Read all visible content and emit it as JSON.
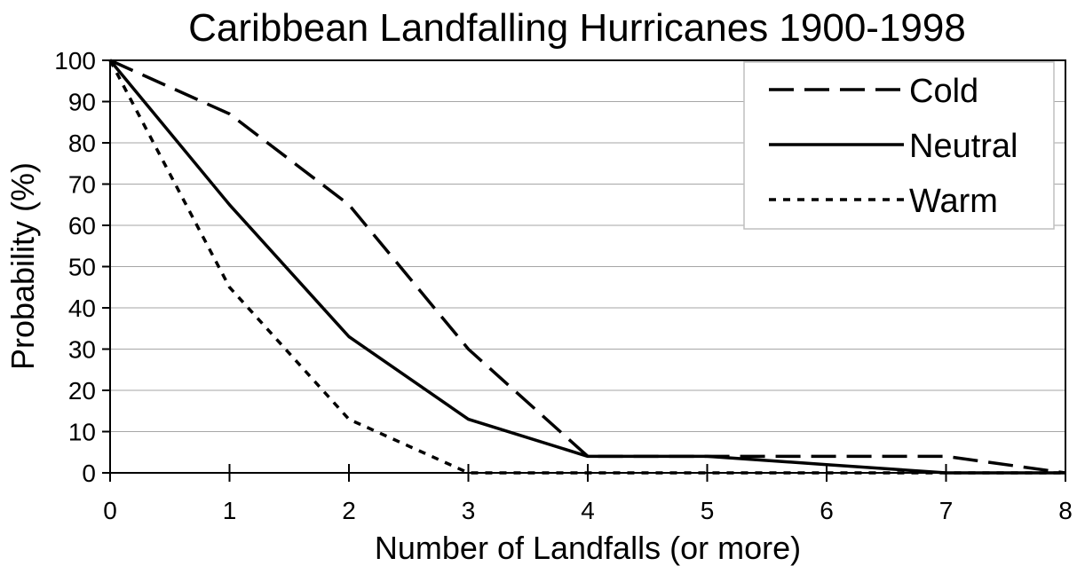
{
  "chart_data": {
    "type": "line",
    "title": "Caribbean Landfalling Hurricanes 1900-1998",
    "xlabel": "Number of Landfalls (or more)",
    "ylabel": "Probability (%)",
    "x": [
      0,
      1,
      2,
      3,
      4,
      5,
      6,
      7,
      8
    ],
    "xlim": [
      0,
      8
    ],
    "ylim": [
      0,
      100
    ],
    "x_ticks": [
      "0",
      "1",
      "2",
      "3",
      "4",
      "5",
      "6",
      "7",
      "8"
    ],
    "y_ticks": [
      "0",
      "10",
      "20",
      "30",
      "40",
      "50",
      "60",
      "70",
      "80",
      "90",
      "100"
    ],
    "grid": "horizontal",
    "legend_position": "top-right",
    "series": [
      {
        "name": "Cold",
        "style": "dashed",
        "color": "#000000",
        "values": [
          100,
          87,
          65,
          30,
          4,
          4,
          4,
          4,
          0
        ]
      },
      {
        "name": "Neutral",
        "style": "solid",
        "color": "#000000",
        "values": [
          100,
          65,
          33,
          13,
          4,
          4,
          2,
          0,
          0
        ]
      },
      {
        "name": "Warm",
        "style": "dotted",
        "color": "#000000",
        "values": [
          100,
          45,
          13,
          0,
          0,
          0,
          0,
          0,
          0
        ]
      }
    ]
  }
}
